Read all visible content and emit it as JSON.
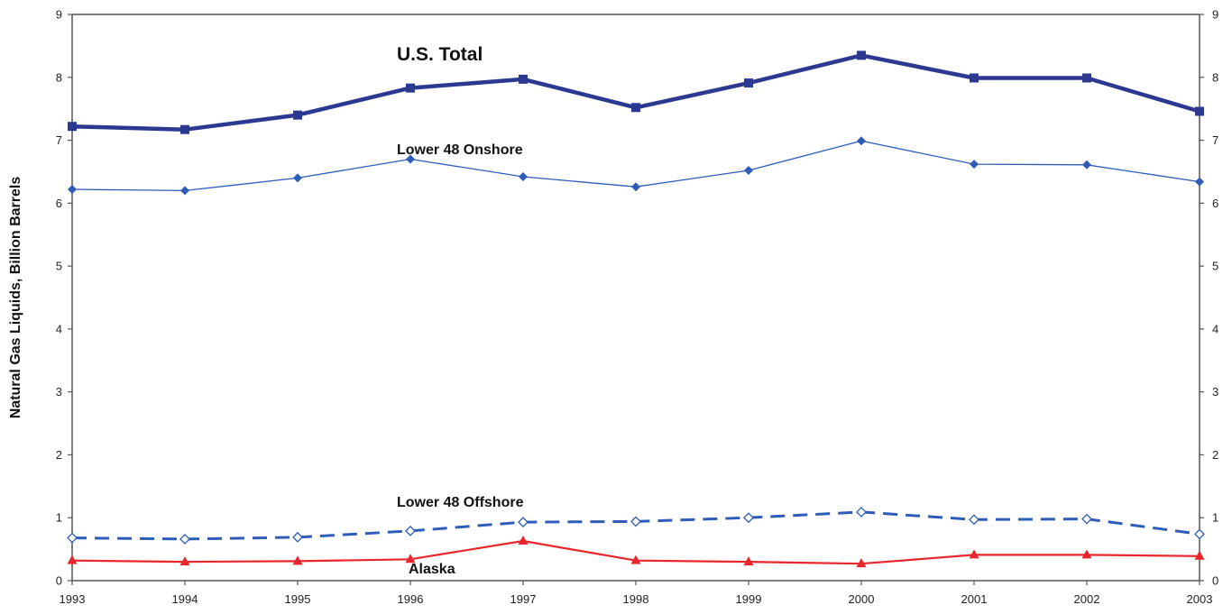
{
  "chart_data": {
    "type": "line",
    "title": "",
    "xlabel": "",
    "ylabel": "Natural Gas Liquids, Billion Barrels",
    "x": [
      "1993",
      "1994",
      "1995",
      "1996",
      "1997",
      "1998",
      "1999",
      "2000",
      "2001",
      "2002",
      "2003"
    ],
    "ylim": [
      0,
      9
    ],
    "yticks": [
      0,
      1,
      2,
      3,
      4,
      5,
      6,
      7,
      8,
      9
    ],
    "grid": false,
    "legend": "inline labels",
    "series": [
      {
        "name": "U.S. Total",
        "values": [
          7.22,
          7.17,
          7.4,
          7.83,
          7.97,
          7.52,
          7.91,
          8.35,
          7.99,
          7.99,
          7.46
        ],
        "color": "#2b3990",
        "style": "solid-bold",
        "marker": "square"
      },
      {
        "name": "Lower 48 Onshore",
        "values": [
          6.22,
          6.2,
          6.4,
          6.7,
          6.42,
          6.26,
          6.52,
          6.99,
          6.62,
          6.61,
          6.34
        ],
        "color": "#2e5cb8",
        "style": "solid-thin",
        "marker": "diamond"
      },
      {
        "name": "Lower 48 Offshore",
        "values": [
          0.68,
          0.66,
          0.69,
          0.79,
          0.93,
          0.94,
          1.0,
          1.09,
          0.97,
          0.98,
          0.74
        ],
        "color": "#2e5cb8",
        "style": "dashed",
        "marker": "diamond-open"
      },
      {
        "name": "Alaska",
        "values": [
          0.32,
          0.3,
          0.31,
          0.34,
          0.63,
          0.32,
          0.3,
          0.27,
          0.41,
          0.41,
          0.39
        ],
        "color": "#e8262b",
        "style": "solid",
        "marker": "triangle"
      }
    ]
  }
}
